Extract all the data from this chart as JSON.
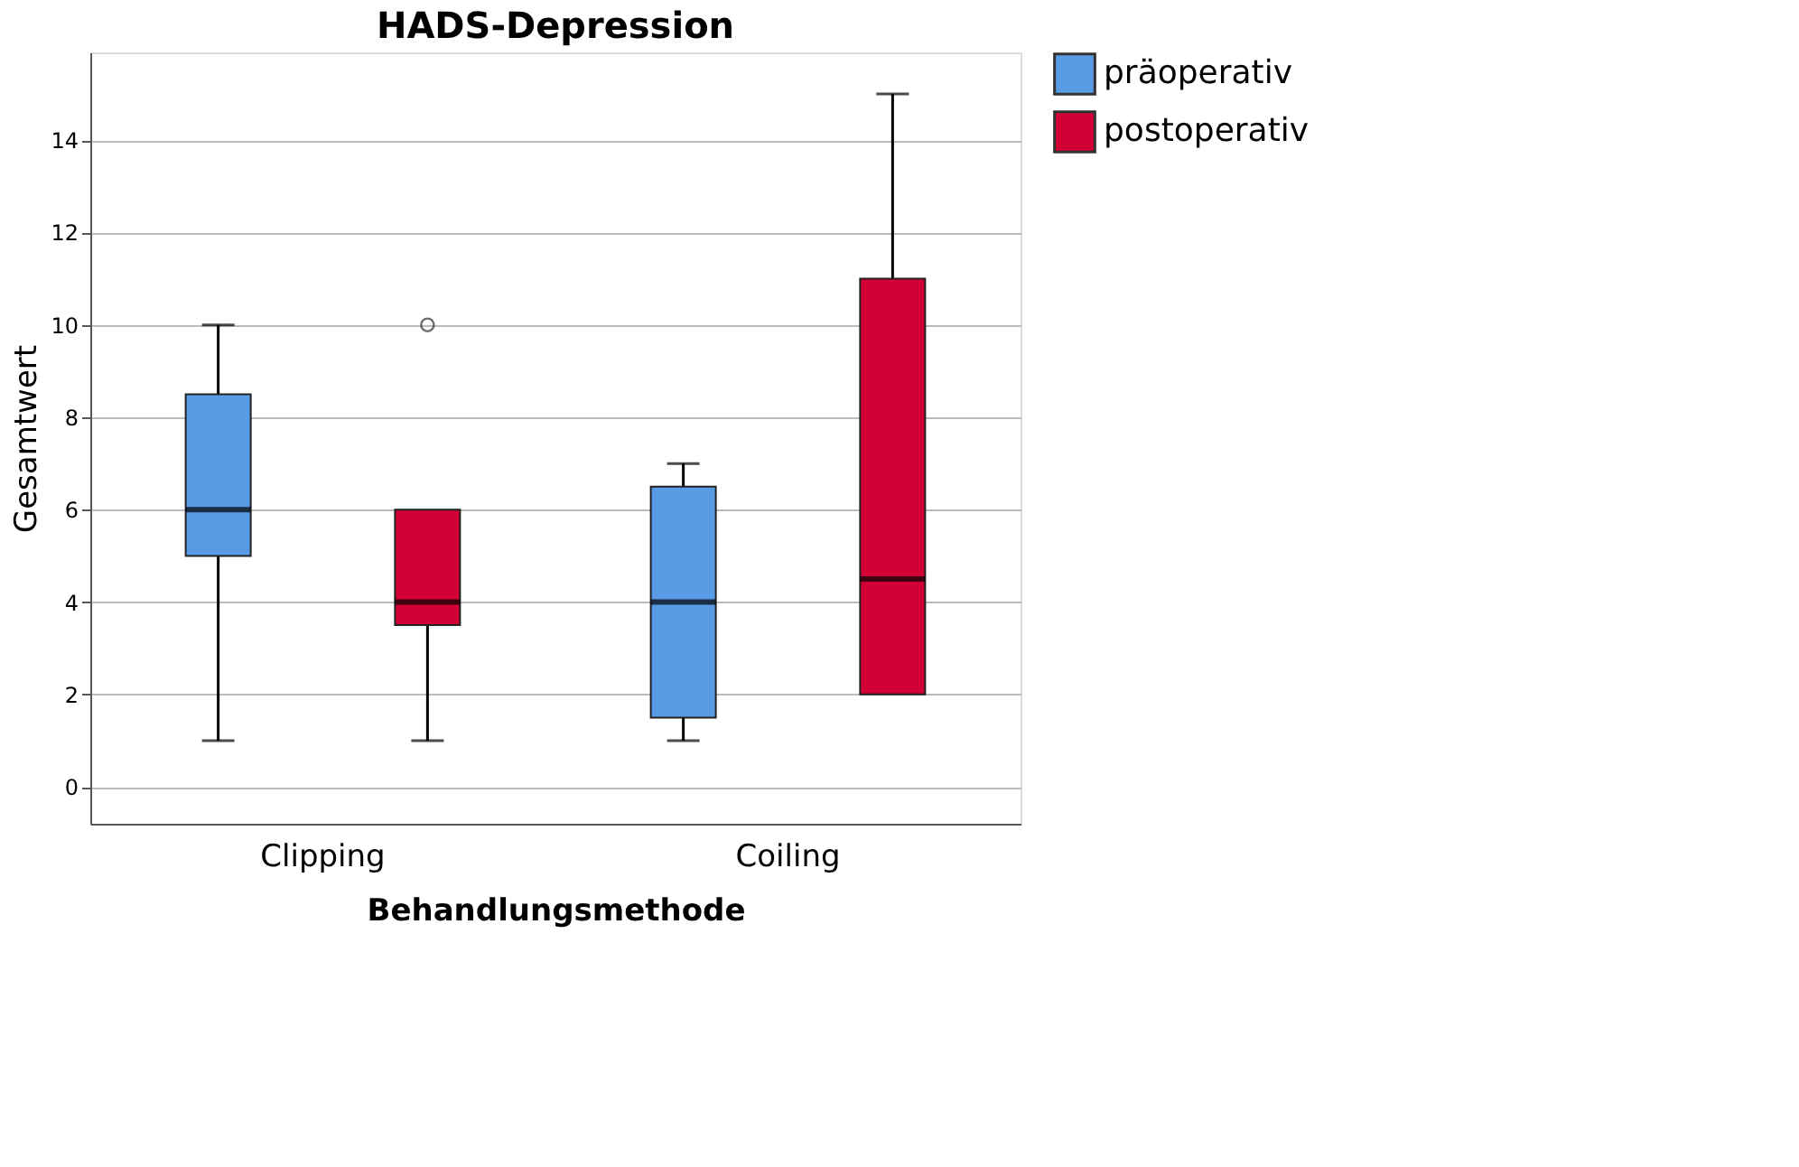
{
  "chart_data": {
    "type": "box",
    "title": "HADS-Depression",
    "xlabel": "Behandlungsmethode",
    "ylabel": "Gesamtwert",
    "categories": [
      "Clipping",
      "Coiling"
    ],
    "series": [
      {
        "name": "präoperativ",
        "color": "#5a9be6",
        "boxes": [
          {
            "low": 1,
            "q1": 5,
            "median": 6,
            "q3": 8.5,
            "high": 10
          },
          {
            "low": 1,
            "q1": 1.5,
            "median": 4,
            "q3": 6.5,
            "high": 7
          }
        ]
      },
      {
        "name": "postoperativ",
        "color": "#d20034",
        "boxes": [
          {
            "low": 1,
            "q1": 3.5,
            "median": 4,
            "q3": 6,
            "high": 6,
            "outliers": [
              10
            ]
          },
          {
            "low": 2,
            "q1": 2,
            "median": 4.5,
            "q3": 11,
            "high": 15
          }
        ]
      }
    ],
    "ylim": [
      -0.8,
      15.9
    ],
    "yticks": [
      0,
      2,
      4,
      6,
      8,
      10,
      12,
      14
    ],
    "grid": "y",
    "legend": "top right"
  }
}
